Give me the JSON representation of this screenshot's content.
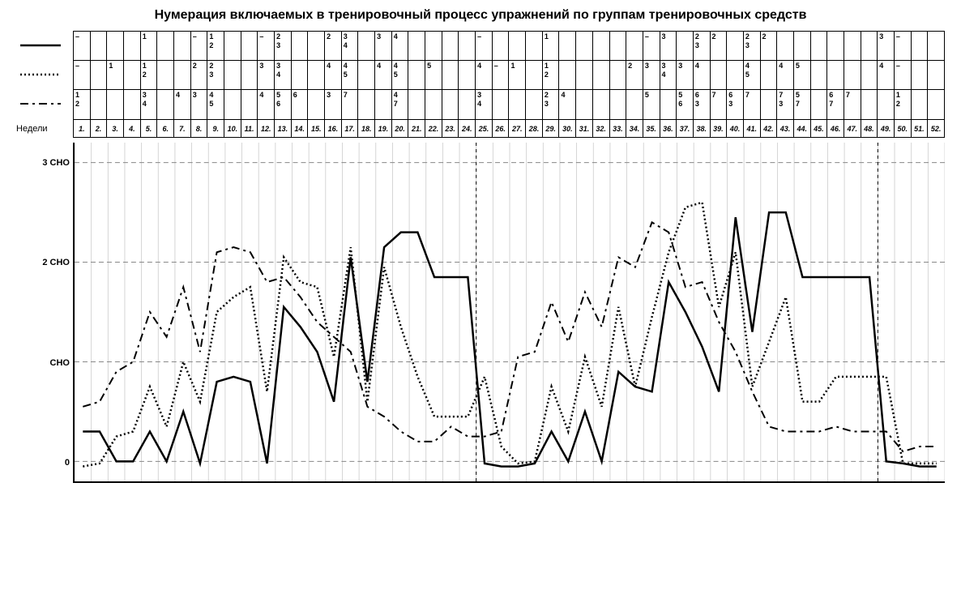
{
  "title": "Нумерация включаемых в тренировочный процесс упражнений по группам тренировочных средств",
  "weeks_label": "Недели",
  "n_weeks": 52,
  "week_labels": [
    "1.",
    "2.",
    "3.",
    "4.",
    "5.",
    "6.",
    "7.",
    "8.",
    "9.",
    "10.",
    "11.",
    "12.",
    "13.",
    "14.",
    "15.",
    "16.",
    "17.",
    "18.",
    "19.",
    "20.",
    "21.",
    "22.",
    "23.",
    "24.",
    "25.",
    "26.",
    "27.",
    "28.",
    "29.",
    "30.",
    "31.",
    "32.",
    "33.",
    "34.",
    "35.",
    "36.",
    "37.",
    "38.",
    "39.",
    "40.",
    "41.",
    "42.",
    "43.",
    "44.",
    "45.",
    "46.",
    "47.",
    "48.",
    "49.",
    "50.",
    "51.",
    "52."
  ],
  "exercise_table": {
    "rows": [
      [
        "–",
        "",
        "",
        "",
        "1",
        "",
        "",
        "–",
        "1 2",
        "",
        "",
        "–",
        "2 3",
        "",
        "",
        "2",
        "3 4",
        "",
        "3",
        "4",
        "",
        "",
        "",
        "",
        "–",
        "",
        "",
        "",
        "1",
        "",
        "",
        "",
        "",
        "",
        "–",
        "3",
        "",
        "2 3",
        "2",
        "",
        "2 3",
        "2",
        "",
        "",
        "",
        "",
        "",
        "",
        "3",
        "–",
        "",
        ""
      ],
      [
        "–",
        "",
        "1",
        "",
        "1 2",
        "",
        "",
        "2",
        "2 3",
        "",
        "",
        "3",
        "3 4",
        "",
        "",
        "4",
        "4 5",
        "",
        "4",
        "4 5",
        "",
        "5",
        "",
        "",
        "4",
        "–",
        "1",
        "",
        "1 2",
        "",
        "",
        "",
        "",
        "2",
        "3",
        "3 4",
        "3",
        "4",
        "",
        "",
        "4 5",
        "",
        "4",
        "5",
        "",
        "",
        "",
        "",
        "4",
        "–",
        "",
        ""
      ],
      [
        "1 2",
        "",
        "",
        "",
        "3 4",
        "",
        "4",
        "3",
        "4 5",
        "",
        "",
        "4",
        "5 6",
        "6",
        "",
        "3",
        "7",
        "",
        "",
        "4 7",
        "",
        "",
        "",
        "",
        "3 4",
        "",
        "",
        "",
        "2 3",
        "4",
        "",
        "",
        "",
        "",
        "5",
        "",
        "5 6",
        "6 3",
        "7",
        "6 3",
        "7",
        "",
        "7 3",
        "5 7",
        "",
        "6 7",
        "7",
        "",
        "",
        "1 2",
        "",
        ""
      ]
    ]
  },
  "legend_styles": [
    {
      "dash": "",
      "width": 2.5
    },
    {
      "dash": "2,3",
      "width": 2.5
    },
    {
      "dash": "10,5,3,5",
      "width": 2
    }
  ],
  "chart": {
    "y_axis": {
      "labels": [
        {
          "text": "3 СНО",
          "value": 3
        },
        {
          "text": "2 СНО",
          "value": 2
        },
        {
          "text": "СНО",
          "value": 1
        },
        {
          "text": "0",
          "value": 0
        }
      ],
      "min": -0.2,
      "max": 3.2,
      "grid_values": [
        0,
        1,
        2,
        3
      ]
    },
    "x_divider_after": [
      24,
      48
    ],
    "series": [
      {
        "name": "solid",
        "dash": "",
        "width": 2.5,
        "color": "#000000",
        "values": [
          0.3,
          0.3,
          0.0,
          0.0,
          0.3,
          0.0,
          0.5,
          -0.02,
          0.8,
          0.85,
          0.8,
          -0.02,
          1.55,
          1.35,
          1.1,
          0.6,
          2.05,
          0.8,
          2.15,
          2.3,
          2.3,
          1.85,
          1.85,
          1.85,
          -0.02,
          -0.05,
          -0.05,
          -0.02,
          0.3,
          0.0,
          0.5,
          0.0,
          0.9,
          0.75,
          0.7,
          1.8,
          1.5,
          1.15,
          0.7,
          2.45,
          1.3,
          2.5,
          2.5,
          1.85,
          1.85,
          1.85,
          1.85,
          1.85,
          0.0,
          -0.02,
          -0.05,
          -0.05
        ]
      },
      {
        "name": "dotted",
        "dash": "2,3",
        "width": 2.5,
        "color": "#000000",
        "values": [
          -0.05,
          -0.02,
          0.25,
          0.3,
          0.75,
          0.35,
          1.0,
          0.6,
          1.5,
          1.65,
          1.75,
          0.7,
          2.05,
          1.8,
          1.75,
          1.05,
          2.15,
          0.6,
          1.95,
          1.35,
          0.85,
          0.45,
          0.45,
          0.45,
          0.85,
          0.15,
          -0.02,
          0.0,
          0.75,
          0.3,
          1.05,
          0.55,
          1.55,
          0.75,
          1.45,
          2.1,
          2.55,
          2.6,
          1.55,
          2.1,
          0.75,
          1.2,
          1.65,
          0.6,
          0.6,
          0.85,
          0.85,
          0.85,
          0.85,
          -0.02,
          -0.02,
          -0.02
        ]
      },
      {
        "name": "dashdot",
        "dash": "10,5,3,5",
        "width": 2,
        "color": "#000000",
        "values": [
          0.55,
          0.6,
          0.9,
          1.0,
          1.5,
          1.25,
          1.75,
          1.1,
          2.1,
          2.15,
          2.1,
          1.8,
          1.85,
          1.65,
          1.4,
          1.25,
          1.1,
          0.55,
          0.45,
          0.3,
          0.2,
          0.2,
          0.35,
          0.25,
          0.25,
          0.3,
          1.05,
          1.1,
          1.6,
          1.2,
          1.7,
          1.35,
          2.05,
          1.95,
          2.4,
          2.3,
          1.75,
          1.8,
          1.4,
          1.1,
          0.7,
          0.35,
          0.3,
          0.3,
          0.3,
          0.35,
          0.3,
          0.3,
          0.3,
          0.1,
          0.15,
          0.15
        ]
      }
    ],
    "grid_color": "#888888",
    "minor_grid_color": "#cccccc",
    "background": "#ffffff"
  }
}
